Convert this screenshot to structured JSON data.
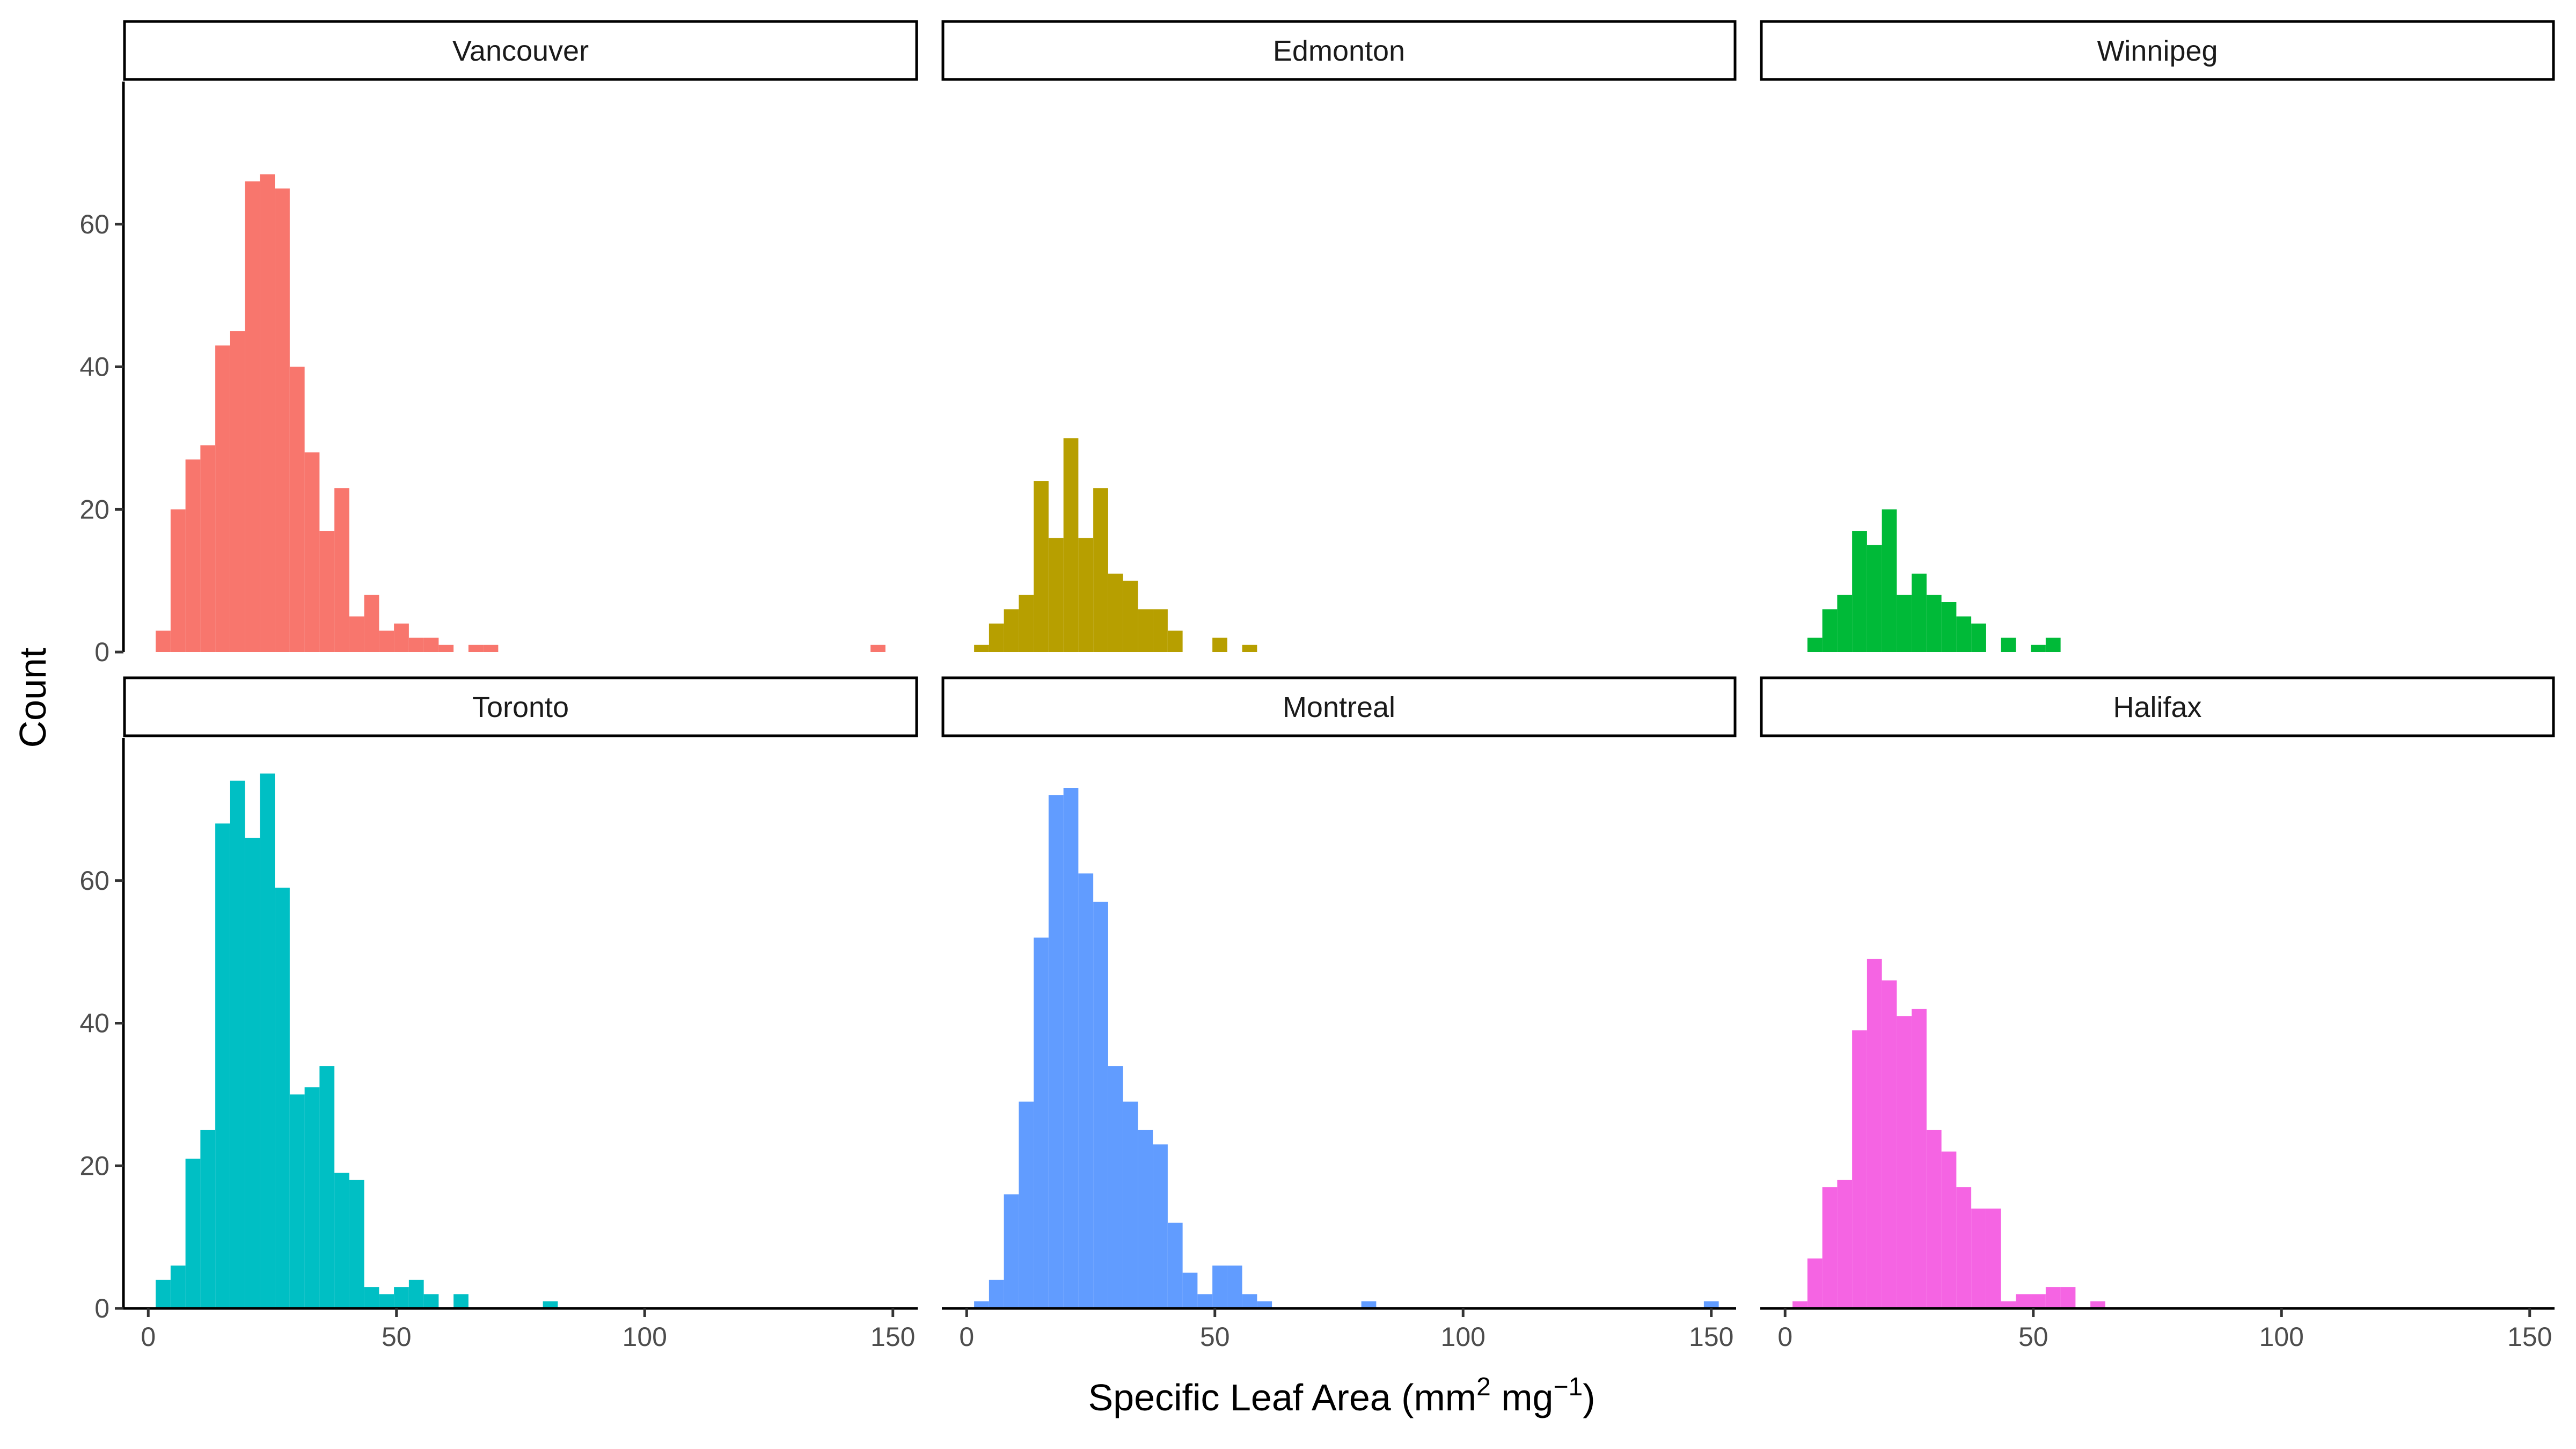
{
  "chart_data": {
    "type": "bar",
    "subtype": "faceted-histogram",
    "xlabel_main": "Specific Leaf Area (mm",
    "xlabel_sup1": "2",
    "xlabel_mid": " mg",
    "xlabel_sup2": "−1",
    "xlabel_end": ")",
    "ylabel": "Count",
    "xlim": [
      -5,
      155
    ],
    "ylim": [
      0,
      80
    ],
    "xticks": [
      0,
      50,
      100,
      150
    ],
    "yticks": [
      0,
      20,
      40,
      60
    ],
    "bin_width": 3,
    "grid": false,
    "legend": "none",
    "facets": [
      {
        "name": "Vancouver",
        "color": "#F8766D",
        "bins": [
          {
            "x": 3,
            "count": 3
          },
          {
            "x": 6,
            "count": 20
          },
          {
            "x": 9,
            "count": 27
          },
          {
            "x": 12,
            "count": 29
          },
          {
            "x": 15,
            "count": 43
          },
          {
            "x": 18,
            "count": 45
          },
          {
            "x": 21,
            "count": 66
          },
          {
            "x": 24,
            "count": 67
          },
          {
            "x": 27,
            "count": 65
          },
          {
            "x": 30,
            "count": 40
          },
          {
            "x": 33,
            "count": 28
          },
          {
            "x": 36,
            "count": 17
          },
          {
            "x": 39,
            "count": 23
          },
          {
            "x": 42,
            "count": 5
          },
          {
            "x": 45,
            "count": 8
          },
          {
            "x": 48,
            "count": 3
          },
          {
            "x": 51,
            "count": 4
          },
          {
            "x": 54,
            "count": 2
          },
          {
            "x": 57,
            "count": 2
          },
          {
            "x": 60,
            "count": 1
          },
          {
            "x": 66,
            "count": 1
          },
          {
            "x": 69,
            "count": 1
          },
          {
            "x": 147,
            "count": 1
          }
        ]
      },
      {
        "name": "Edmonton",
        "color": "#B79F00",
        "bins": [
          {
            "x": 3,
            "count": 1
          },
          {
            "x": 6,
            "count": 4
          },
          {
            "x": 9,
            "count": 6
          },
          {
            "x": 12,
            "count": 8
          },
          {
            "x": 15,
            "count": 24
          },
          {
            "x": 18,
            "count": 16
          },
          {
            "x": 21,
            "count": 30
          },
          {
            "x": 24,
            "count": 16
          },
          {
            "x": 27,
            "count": 23
          },
          {
            "x": 30,
            "count": 11
          },
          {
            "x": 33,
            "count": 10
          },
          {
            "x": 36,
            "count": 6
          },
          {
            "x": 39,
            "count": 6
          },
          {
            "x": 42,
            "count": 3
          },
          {
            "x": 51,
            "count": 2
          },
          {
            "x": 57,
            "count": 1
          }
        ]
      },
      {
        "name": "Winnipeg",
        "color": "#00BA38",
        "bins": [
          {
            "x": 6,
            "count": 2
          },
          {
            "x": 9,
            "count": 6
          },
          {
            "x": 12,
            "count": 8
          },
          {
            "x": 15,
            "count": 17
          },
          {
            "x": 18,
            "count": 15
          },
          {
            "x": 21,
            "count": 20
          },
          {
            "x": 24,
            "count": 8
          },
          {
            "x": 27,
            "count": 11
          },
          {
            "x": 30,
            "count": 8
          },
          {
            "x": 33,
            "count": 7
          },
          {
            "x": 36,
            "count": 5
          },
          {
            "x": 39,
            "count": 4
          },
          {
            "x": 45,
            "count": 2
          },
          {
            "x": 51,
            "count": 1
          },
          {
            "x": 54,
            "count": 2
          }
        ]
      },
      {
        "name": "Toronto",
        "color": "#00BFC4",
        "bins": [
          {
            "x": 3,
            "count": 4
          },
          {
            "x": 6,
            "count": 6
          },
          {
            "x": 9,
            "count": 21
          },
          {
            "x": 12,
            "count": 25
          },
          {
            "x": 15,
            "count": 68
          },
          {
            "x": 18,
            "count": 74
          },
          {
            "x": 21,
            "count": 66
          },
          {
            "x": 24,
            "count": 75
          },
          {
            "x": 27,
            "count": 59
          },
          {
            "x": 30,
            "count": 30
          },
          {
            "x": 33,
            "count": 31
          },
          {
            "x": 36,
            "count": 34
          },
          {
            "x": 39,
            "count": 19
          },
          {
            "x": 42,
            "count": 18
          },
          {
            "x": 45,
            "count": 3
          },
          {
            "x": 48,
            "count": 2
          },
          {
            "x": 51,
            "count": 3
          },
          {
            "x": 54,
            "count": 4
          },
          {
            "x": 57,
            "count": 2
          },
          {
            "x": 63,
            "count": 2
          },
          {
            "x": 81,
            "count": 1
          }
        ]
      },
      {
        "name": "Montreal",
        "color": "#619CFF",
        "bins": [
          {
            "x": 3,
            "count": 1
          },
          {
            "x": 6,
            "count": 4
          },
          {
            "x": 9,
            "count": 16
          },
          {
            "x": 12,
            "count": 29
          },
          {
            "x": 15,
            "count": 52
          },
          {
            "x": 18,
            "count": 72
          },
          {
            "x": 21,
            "count": 73
          },
          {
            "x": 24,
            "count": 61
          },
          {
            "x": 27,
            "count": 57
          },
          {
            "x": 30,
            "count": 34
          },
          {
            "x": 33,
            "count": 29
          },
          {
            "x": 36,
            "count": 25
          },
          {
            "x": 39,
            "count": 23
          },
          {
            "x": 42,
            "count": 12
          },
          {
            "x": 45,
            "count": 5
          },
          {
            "x": 48,
            "count": 2
          },
          {
            "x": 51,
            "count": 6
          },
          {
            "x": 54,
            "count": 6
          },
          {
            "x": 57,
            "count": 2
          },
          {
            "x": 60,
            "count": 1
          },
          {
            "x": 81,
            "count": 1
          },
          {
            "x": 150,
            "count": 1
          }
        ]
      },
      {
        "name": "Halifax",
        "color": "#F564E3",
        "bins": [
          {
            "x": 3,
            "count": 1
          },
          {
            "x": 6,
            "count": 7
          },
          {
            "x": 9,
            "count": 17
          },
          {
            "x": 12,
            "count": 18
          },
          {
            "x": 15,
            "count": 39
          },
          {
            "x": 18,
            "count": 49
          },
          {
            "x": 21,
            "count": 46
          },
          {
            "x": 24,
            "count": 41
          },
          {
            "x": 27,
            "count": 42
          },
          {
            "x": 30,
            "count": 25
          },
          {
            "x": 33,
            "count": 22
          },
          {
            "x": 36,
            "count": 17
          },
          {
            "x": 39,
            "count": 14
          },
          {
            "x": 42,
            "count": 14
          },
          {
            "x": 45,
            "count": 1
          },
          {
            "x": 48,
            "count": 2
          },
          {
            "x": 51,
            "count": 2
          },
          {
            "x": 54,
            "count": 3
          },
          {
            "x": 57,
            "count": 3
          },
          {
            "x": 63,
            "count": 1
          }
        ]
      }
    ]
  }
}
